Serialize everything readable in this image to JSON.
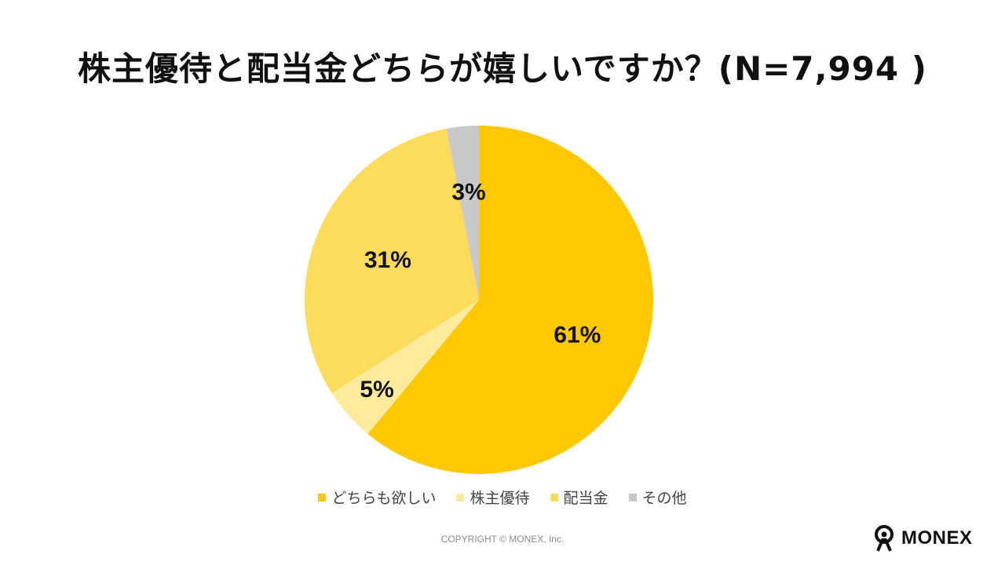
{
  "colors": {
    "both": "#FFC800",
    "benefit": "#FFEB9E",
    "dividend": "#FFDB5C",
    "other": "#C8C8C8"
  },
  "chart_data": {
    "type": "pie",
    "title": "株主優待と配当金どちらが嬉しいですか？(N=7,994 )",
    "slices": [
      {
        "name": "どちらも欲しい",
        "value": 61,
        "label": "61%",
        "color": "#FFC800"
      },
      {
        "name": "株主優待",
        "value": 5,
        "label": "5%",
        "color": "#FFEB9E"
      },
      {
        "name": "配当金",
        "value": 31,
        "label": "31%",
        "color": "#FFDB5C"
      },
      {
        "name": "その他",
        "value": 3,
        "label": "3%",
        "color": "#C8C8C8"
      }
    ],
    "start_angle": "12 o'clock",
    "direction": "clockwise",
    "legend_position": "bottom"
  },
  "footer": {
    "copyright": "COPYRIGHT © MONEX, Inc.",
    "logo_text": "MONEX",
    "logo_icon": "monex-person-icon"
  }
}
